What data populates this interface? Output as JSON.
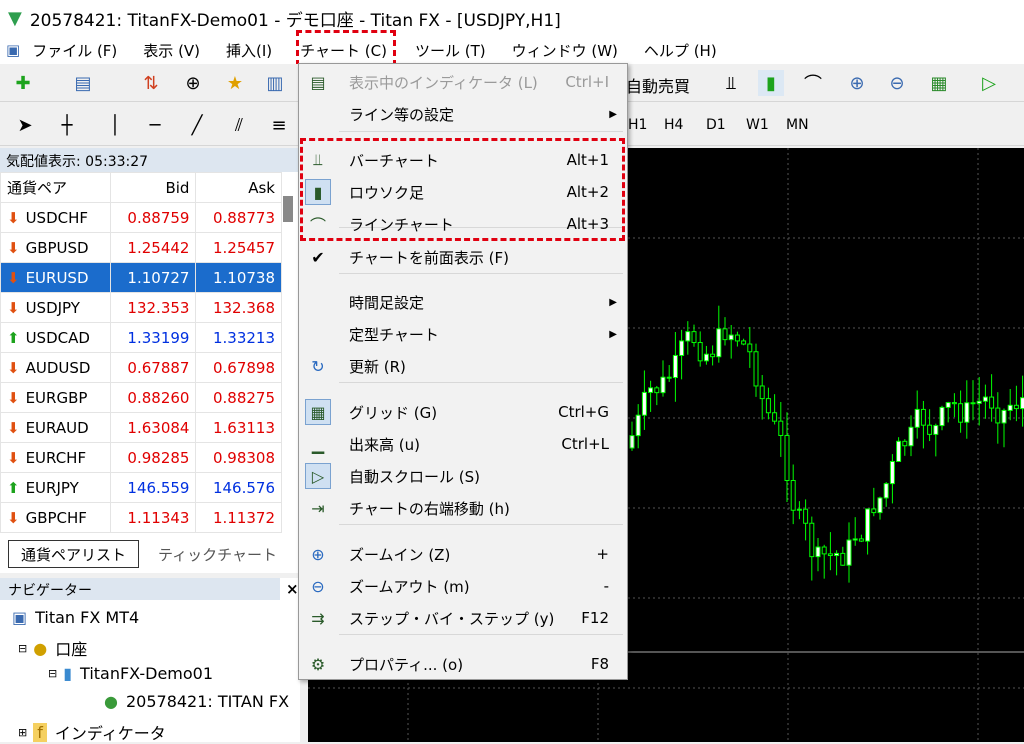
{
  "window": {
    "title": "20578421: TitanFX-Demo01 - デモ口座 - Titan FX - [USDJPY,H1]"
  },
  "menubar": [
    "ファイル (F)",
    "表示 (V)",
    "挿入(I)",
    "チャート (C)",
    "ツール (T)",
    "ウィンドウ (W)",
    "ヘルプ (H)"
  ],
  "toolbar": {
    "autotrade": "自動売買",
    "timeframes": [
      "H1",
      "H4",
      "D1",
      "W1",
      "MN"
    ]
  },
  "market_watch": {
    "title": "気配値表示: 05:33:27",
    "columns": [
      "通貨ペア",
      "Bid",
      "Ask"
    ],
    "rows": [
      {
        "symbol": "USDCHF",
        "bid": "0.88759",
        "ask": "0.88773",
        "dir": "down"
      },
      {
        "symbol": "GBPUSD",
        "bid": "1.25442",
        "ask": "1.25457",
        "dir": "down"
      },
      {
        "symbol": "EURUSD",
        "bid": "1.10727",
        "ask": "1.10738",
        "dir": "down",
        "selected": true
      },
      {
        "symbol": "USDJPY",
        "bid": "132.353",
        "ask": "132.368",
        "dir": "down"
      },
      {
        "symbol": "USDCAD",
        "bid": "1.33199",
        "ask": "1.33213",
        "dir": "up"
      },
      {
        "symbol": "AUDUSD",
        "bid": "0.67887",
        "ask": "0.67898",
        "dir": "down"
      },
      {
        "symbol": "EURGBP",
        "bid": "0.88260",
        "ask": "0.88275",
        "dir": "down"
      },
      {
        "symbol": "EURAUD",
        "bid": "1.63084",
        "ask": "1.63113",
        "dir": "down"
      },
      {
        "symbol": "EURCHF",
        "bid": "0.98285",
        "ask": "0.98308",
        "dir": "down"
      },
      {
        "symbol": "EURJPY",
        "bid": "146.559",
        "ask": "146.576",
        "dir": "up"
      },
      {
        "symbol": "GBPCHF",
        "bid": "1.11343",
        "ask": "1.11372",
        "dir": "down"
      }
    ],
    "tabs": [
      "通貨ペアリスト",
      "ティックチャート"
    ]
  },
  "navigator": {
    "title": "ナビゲーター",
    "items": [
      "Titan FX MT4",
      "口座",
      "TitanFX-Demo01",
      "20578421: TITAN FX",
      "インディケータ"
    ]
  },
  "chart_menu": {
    "items": [
      {
        "label": "表示中のインディケータ (L)",
        "shortcut": "Ctrl+I",
        "disabled": true,
        "icon": "indicators-list-icon"
      },
      {
        "label": "ライン等の設定",
        "submenu": true
      },
      {
        "label": "バーチャート",
        "shortcut": "Alt+1",
        "icon": "bar-chart-icon"
      },
      {
        "label": "ロウソク足",
        "shortcut": "Alt+2",
        "icon": "candlestick-icon",
        "checked": true
      },
      {
        "label": "ラインチャート",
        "shortcut": "Alt+3",
        "icon": "line-chart-icon"
      },
      {
        "label": "チャートを前面表示 (F)",
        "check": true
      },
      {
        "label": "時間足設定",
        "submenu": true
      },
      {
        "label": "定型チャート",
        "submenu": true
      },
      {
        "label": "更新 (R)",
        "icon": "refresh-icon"
      },
      {
        "label": "グリッド (G)",
        "shortcut": "Ctrl+G",
        "icon": "grid-icon",
        "checked": true
      },
      {
        "label": "出来高 (u)",
        "shortcut": "Ctrl+L",
        "icon": "volume-icon"
      },
      {
        "label": "自動スクロール (S)",
        "icon": "autoscroll-icon",
        "checked": true
      },
      {
        "label": "チャートの右端移動 (h)",
        "icon": "chart-shift-icon"
      },
      {
        "label": "ズームイン (Z)",
        "shortcut": "+",
        "icon": "zoom-in-icon"
      },
      {
        "label": "ズームアウト (m)",
        "shortcut": "-",
        "icon": "zoom-out-icon"
      },
      {
        "label": "ステップ・バイ・ステップ (y)",
        "shortcut": "F12",
        "icon": "step-icon"
      },
      {
        "label": "プロパティ... (o)",
        "shortcut": "F8",
        "icon": "properties-icon"
      }
    ]
  },
  "colors": {
    "highlight": "#e00010",
    "selection": "#1b6ccc",
    "candle": "#00ff00"
  }
}
